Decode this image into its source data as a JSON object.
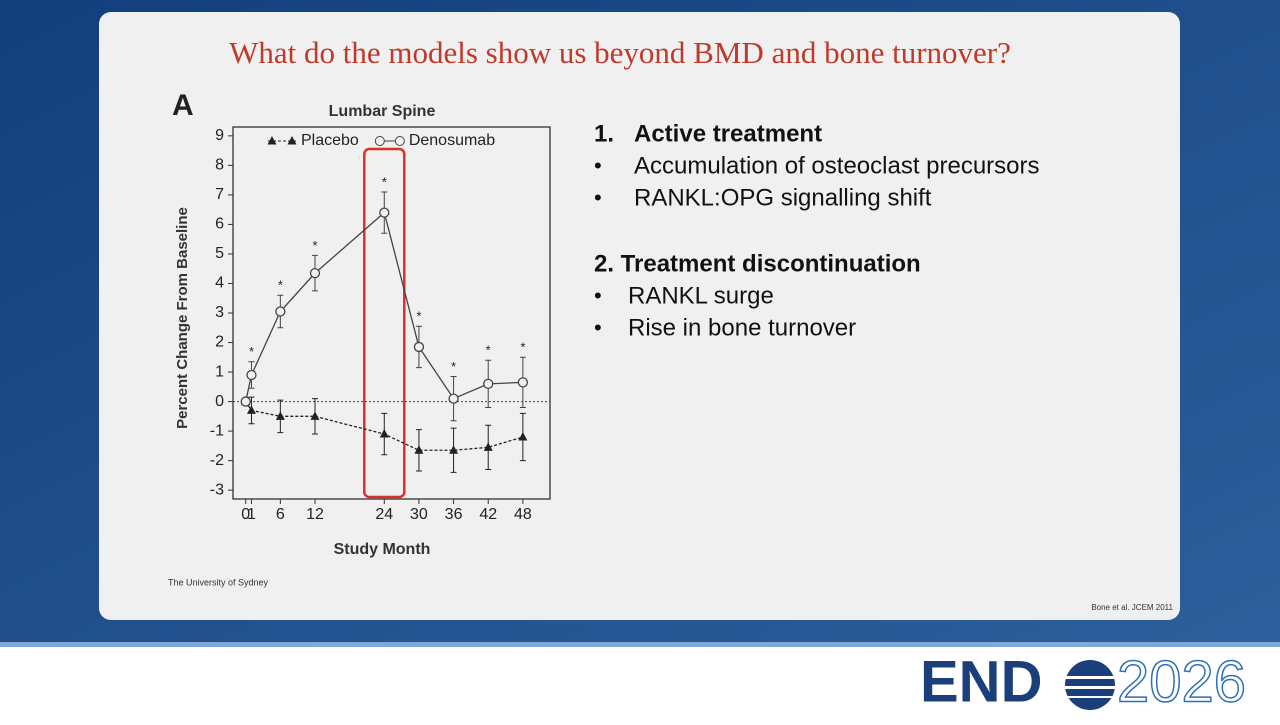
{
  "slide": {
    "title": "What do the models show us beyond BMD and bone turnover?",
    "panel_label": "A",
    "sections": [
      {
        "number": "1.",
        "heading": "Active treatment",
        "items": [
          "Accumulation of osteoclast precursors",
          "RANKL:OPG signalling shift"
        ]
      },
      {
        "heading": "2. Treatment discontinuation",
        "items": [
          "RANKL surge",
          "Rise in bone turnover"
        ]
      }
    ],
    "footer_left": "The University of Sydney",
    "citation": "Bone et al. JCEM 2011",
    "logo": {
      "left": "END",
      "right": "2026"
    }
  },
  "chart_data": {
    "type": "line",
    "title": "Lumbar Spine",
    "x_label": "Study Month",
    "y_label": "Percent Change From Baseline",
    "x": [
      0,
      1,
      6,
      12,
      24,
      30,
      36,
      42,
      48
    ],
    "series": [
      {
        "name": "Placebo",
        "color": "#222222",
        "marker": "triangle",
        "dashed": true,
        "values": [
          0,
          -0.3,
          -0.5,
          -0.5,
          -1.1,
          -1.65,
          -1.65,
          -1.55,
          -1.2
        ],
        "errors": [
          null,
          0.45,
          0.55,
          0.6,
          0.7,
          0.7,
          0.75,
          0.75,
          0.8
        ]
      },
      {
        "name": "Denosumab",
        "color": "#444444",
        "marker": "circle",
        "dashed": false,
        "values": [
          0,
          0.9,
          3.05,
          4.35,
          6.4,
          1.85,
          0.1,
          0.6,
          0.65
        ],
        "errors": [
          null,
          0.45,
          0.55,
          0.6,
          0.7,
          0.7,
          0.75,
          0.8,
          0.85
        ],
        "significance": [
          null,
          "*",
          "*",
          "*",
          "*",
          "*",
          "*",
          "*",
          "*"
        ]
      }
    ],
    "xlim": [
      -2.2,
      52.7
    ],
    "ylim": [
      -3.3,
      9.3
    ],
    "xticks": [
      0,
      1,
      6,
      12,
      24,
      30,
      36,
      42,
      48
    ],
    "yticks": [
      -3,
      -2,
      -1,
      0,
      1,
      2,
      3,
      4,
      5,
      6,
      7,
      8,
      9
    ],
    "zero_line": true,
    "highlight_x": 24,
    "highlight_color": "#d9322a"
  }
}
